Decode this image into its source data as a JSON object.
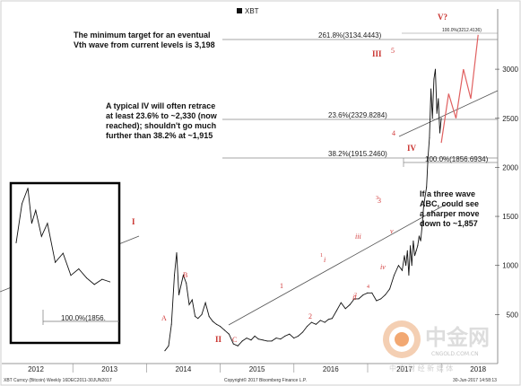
{
  "chart_data": {
    "type": "line",
    "legend": "XBT",
    "y_axis": {
      "ticks": [
        "3000",
        "2500",
        "2000",
        "1500",
        "1000",
        "500"
      ],
      "position": "right"
    },
    "x_axis": {
      "ticks": [
        "2012",
        "2013",
        "2014",
        "2015",
        "2016",
        "2017",
        "2018"
      ]
    },
    "ylim": [
      0,
      3450
    ],
    "series": [
      {
        "name": "XBT",
        "x": [
          2013.75,
          2013.8,
          2013.84,
          2013.88,
          2013.91,
          2013.94,
          2013.97,
          2014.0,
          2014.04,
          2014.08,
          2014.12,
          2014.16,
          2014.2,
          2014.25,
          2014.3,
          2014.35,
          2014.4,
          2014.45,
          2014.5,
          2014.56,
          2014.62,
          2014.68,
          2014.74,
          2014.8,
          2014.86,
          2014.92,
          2014.97,
          2015.02,
          2015.08,
          2015.14,
          2015.2,
          2015.26,
          2015.32,
          2015.38,
          2015.44,
          2015.5,
          2015.56,
          2015.62,
          2015.68,
          2015.74,
          2015.8,
          2015.86,
          2015.92,
          2015.97,
          2016.02,
          2016.08,
          2016.14,
          2016.2,
          2016.26,
          2016.32,
          2016.38,
          2016.44,
          2016.5,
          2016.56,
          2016.62,
          2016.68,
          2016.74,
          2016.8,
          2016.86,
          2016.92,
          2016.97,
          2017.0,
          2017.02,
          2017.04,
          2017.06,
          2017.08,
          2017.1,
          2017.12,
          2017.14,
          2017.16,
          2017.18,
          2017.2,
          2017.22,
          2017.24,
          2017.26,
          2017.28,
          2017.3,
          2017.32,
          2017.34,
          2017.36,
          2017.38,
          2017.4,
          2017.42,
          2017.44,
          2017.46,
          2017.48,
          2017.5
        ],
        "values": [
          130,
          180,
          400,
          900,
          1130,
          700,
          800,
          900,
          820,
          600,
          650,
          480,
          460,
          500,
          620,
          480,
          430,
          400,
          380,
          340,
          300,
          200,
          180,
          230,
          260,
          240,
          280,
          250,
          240,
          230,
          230,
          260,
          250,
          280,
          300,
          260,
          280,
          320,
          380,
          420,
          400,
          440,
          420,
          450,
          460,
          540,
          620,
          560,
          600,
          660,
          660,
          700,
          720,
          720,
          640,
          660,
          700,
          760,
          900,
          1000,
          950,
          1100,
          1000,
          1150,
          900,
          1200,
          1000,
          1250,
          1100,
          1150,
          1200,
          1300,
          1250,
          1400,
          1600,
          1700,
          1800,
          2100,
          2300,
          2800,
          2500,
          2900,
          3000,
          2550,
          2700,
          2350,
          2500
        ]
      }
    ],
    "projection": {
      "x": [
        2017.5,
        2017.6,
        2017.7,
        2017.8,
        2017.9,
        2018.0
      ],
      "values": [
        2250,
        2750,
        2500,
        3000,
        2700,
        3350
      ]
    },
    "inset_series": {
      "x": [
        2013.92,
        2013.95,
        2013.98,
        2014.0,
        2014.02,
        2014.05,
        2014.08,
        2014.12,
        2014.16,
        2014.2,
        2014.24,
        2014.28,
        2014.32,
        2014.36,
        2014.4
      ],
      "values": [
        700,
        1000,
        1120,
        850,
        950,
        750,
        850,
        550,
        620,
        450,
        500,
        430,
        380,
        420,
        400
      ]
    },
    "fib_levels": [
      {
        "label": "261.8%(3134.4443)",
        "value": 3134.4443
      },
      {
        "label": "100.0%(3212.4136)",
        "value": 3212.4136
      },
      {
        "label": "23.6%(2329.8284)",
        "value": 2329.8284
      },
      {
        "label": "38.2%(1915.2460)",
        "value": 1915.246
      },
      {
        "label": "100.0%(1856.6934)",
        "value": 1856.6934
      }
    ],
    "inset_fib_label": "100.0%(1856.",
    "annotations": [
      "The minimum target for an eventual",
      "Vth wave from current levels is 3,198",
      "A typical IV will often retrace",
      "at least 23.6% to ~2,330 (now",
      "reached); shouldn't go much",
      "further than 38.2% at ~1,915",
      "If a three wave",
      "ABC, could see",
      "a sharper move",
      "down to ~1,857"
    ],
    "wave_labels": [
      "III",
      "IV",
      "V?",
      "I",
      "II",
      "5",
      "B?",
      "A",
      "C?",
      "A",
      "B",
      "C",
      "1",
      "2",
      "3",
      "4",
      "i",
      "ii",
      "iii",
      "iv",
      "v",
      "3",
      "4",
      "5",
      "2",
      "1"
    ],
    "footer": {
      "left": "XBT Curncy (Bitcoin) Weekly 16DEC2011-30JUN2017",
      "center": "Copyright© 2017 Bloomberg Finance L.P.",
      "right": "30-Jun-2017 14:58:13"
    },
    "watermark": {
      "cn": "中金网",
      "url": "CNGOLD.COM.CN",
      "tagline": "中 文 财 经 新 媒 体"
    }
  }
}
